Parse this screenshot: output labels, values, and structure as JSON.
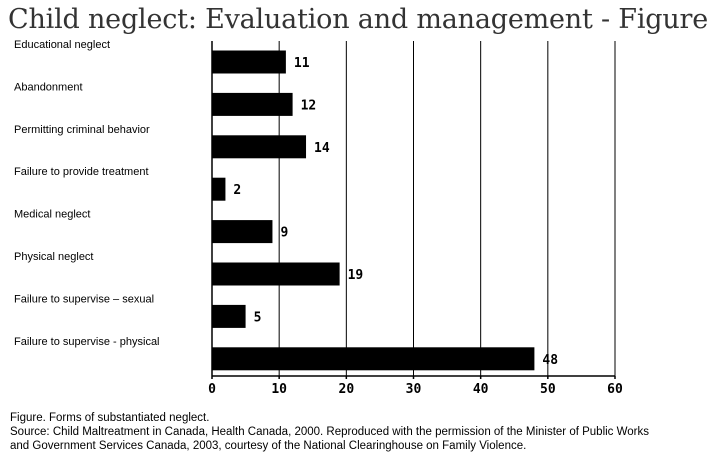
{
  "page": {
    "title": "Child neglect: Evaluation and management - Figure"
  },
  "caption": {
    "line1": "Figure. Forms of substantiated neglect.",
    "line2": "Source: Child Maltreatment in Canada, Health Canada, 2000. Reproduced with the permission of the Minister of Public Works",
    "line3": "and Government Services Canada, 2003, courtesy of the National Clearinghouse on Family Violence."
  },
  "chart_data": {
    "type": "bar",
    "orientation": "horizontal",
    "categories": [
      "Educational neglect",
      "Abandonment",
      "Permitting criminal behavior",
      "Failure to provide treatment",
      "Medical neglect",
      "Physical neglect",
      "Failure to supervise – sexual",
      "Failure to supervise - physical"
    ],
    "values": [
      11,
      12,
      14,
      2,
      9,
      19,
      5,
      48
    ],
    "xlim": [
      0,
      60
    ],
    "xticks": [
      0,
      10,
      20,
      30,
      40,
      50,
      60
    ],
    "grid": "vertical",
    "bar_color": "#000000",
    "data_labels": true
  }
}
